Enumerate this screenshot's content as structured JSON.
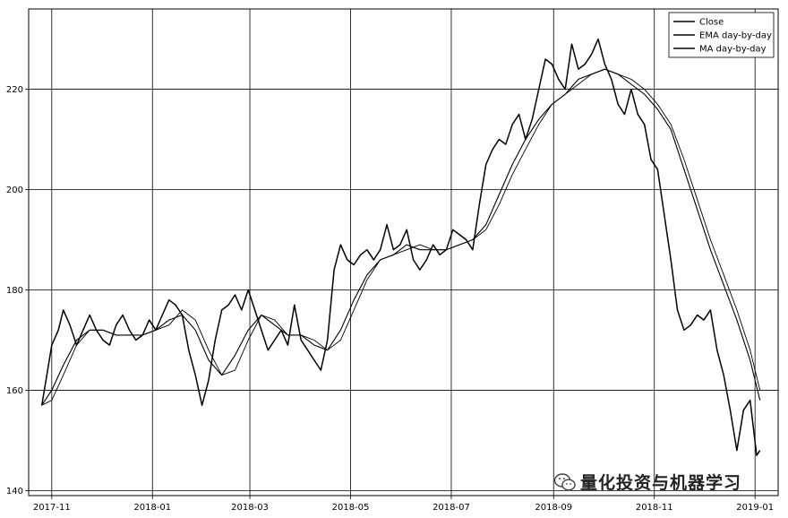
{
  "chart_data": {
    "type": "line",
    "x_tick_labels": [
      "2017-11",
      "2018-01",
      "2018-03",
      "2018-05",
      "2018-07",
      "2018-09",
      "2018-11",
      "2019-01"
    ],
    "y_tick_labels": [
      "140",
      "160",
      "180",
      "200",
      "220"
    ],
    "xlim": [
      "2017-10-18",
      "2019-01-15"
    ],
    "ylim": [
      139,
      236
    ],
    "grid": true,
    "legend_position": "top-right",
    "series": [
      {
        "name": "Close",
        "color": "#000000",
        "x": [
          "2017-10-26",
          "2017-10-29",
          "2017-11-01",
          "2017-11-05",
          "2017-11-08",
          "2017-11-12",
          "2017-11-16",
          "2017-11-20",
          "2017-11-24",
          "2017-11-28",
          "2017-12-02",
          "2017-12-06",
          "2017-12-10",
          "2017-12-14",
          "2017-12-18",
          "2017-12-22",
          "2017-12-26",
          "2017-12-30",
          "2018-01-03",
          "2018-01-07",
          "2018-01-11",
          "2018-01-15",
          "2018-01-19",
          "2018-01-23",
          "2018-01-27",
          "2018-01-31",
          "2018-02-04",
          "2018-02-08",
          "2018-02-12",
          "2018-02-16",
          "2018-02-20",
          "2018-02-24",
          "2018-02-28",
          "2018-03-04",
          "2018-03-08",
          "2018-03-12",
          "2018-03-16",
          "2018-03-20",
          "2018-03-24",
          "2018-03-28",
          "2018-04-01",
          "2018-04-05",
          "2018-04-09",
          "2018-04-13",
          "2018-04-17",
          "2018-04-21",
          "2018-04-25",
          "2018-04-29",
          "2018-05-03",
          "2018-05-07",
          "2018-05-11",
          "2018-05-15",
          "2018-05-19",
          "2018-05-23",
          "2018-05-27",
          "2018-05-31",
          "2018-06-04",
          "2018-06-08",
          "2018-06-12",
          "2018-06-16",
          "2018-06-20",
          "2018-06-24",
          "2018-06-28",
          "2018-07-02",
          "2018-07-06",
          "2018-07-10",
          "2018-07-14",
          "2018-07-18",
          "2018-07-22",
          "2018-07-26",
          "2018-07-30",
          "2018-08-03",
          "2018-08-07",
          "2018-08-11",
          "2018-08-15",
          "2018-08-19",
          "2018-08-23",
          "2018-08-27",
          "2018-08-31",
          "2018-09-04",
          "2018-09-08",
          "2018-09-12",
          "2018-09-16",
          "2018-09-20",
          "2018-09-24",
          "2018-09-28",
          "2018-10-02",
          "2018-10-06",
          "2018-10-10",
          "2018-10-14",
          "2018-10-18",
          "2018-10-22",
          "2018-10-26",
          "2018-10-30",
          "2018-11-03",
          "2018-11-07",
          "2018-11-11",
          "2018-11-15",
          "2018-11-19",
          "2018-11-23",
          "2018-11-27",
          "2018-12-01",
          "2018-12-05",
          "2018-12-09",
          "2018-12-13",
          "2018-12-17",
          "2018-12-21",
          "2018-12-25",
          "2018-12-29",
          "2019-01-02",
          "2019-01-04"
        ],
        "y": [
          157,
          163,
          169,
          172,
          176,
          173,
          169,
          172,
          175,
          172,
          170,
          169,
          173,
          175,
          172,
          170,
          171,
          174,
          172,
          175,
          178,
          177,
          175,
          168,
          163,
          157,
          162,
          170,
          176,
          177,
          179,
          176,
          180,
          176,
          172,
          168,
          170,
          172,
          169,
          177,
          170,
          168,
          166,
          164,
          170,
          184,
          189,
          186,
          185,
          187,
          188,
          186,
          188,
          193,
          188,
          189,
          192,
          186,
          184,
          186,
          189,
          187,
          188,
          192,
          191,
          190,
          188,
          197,
          205,
          208,
          210,
          209,
          213,
          215,
          210,
          214,
          220,
          226,
          225,
          222,
          220,
          229,
          224,
          225,
          227,
          230,
          225,
          222,
          217,
          215,
          220,
          215,
          213,
          206,
          204,
          195,
          186,
          176,
          172,
          173,
          175,
          174,
          176,
          168,
          163,
          156,
          148,
          156,
          158,
          147,
          148
        ],
        "values": [
          157,
          163,
          169,
          172,
          176,
          173,
          169,
          172,
          175,
          172,
          170,
          169,
          173,
          175,
          172,
          170,
          171,
          174,
          172,
          175,
          178,
          177,
          175,
          168,
          163,
          157,
          162,
          170,
          176,
          177,
          179,
          176,
          180,
          176,
          172,
          168,
          170,
          172,
          169,
          177,
          170,
          168,
          166,
          164,
          170,
          184,
          189,
          186,
          185,
          187,
          188,
          186,
          188,
          193,
          188,
          189,
          192,
          186,
          184,
          186,
          189,
          187,
          188,
          192,
          191,
          190,
          188,
          197,
          205,
          208,
          210,
          209,
          213,
          215,
          210,
          214,
          220,
          226,
          225,
          222,
          220,
          229,
          224,
          225,
          227,
          230,
          225,
          222,
          217,
          215,
          220,
          215,
          213,
          206,
          204,
          195,
          186,
          176,
          172,
          173,
          175,
          174,
          176,
          168,
          163,
          156,
          148,
          156,
          158,
          147,
          148
        ]
      },
      {
        "name": "EMA day-by-day",
        "color": "#000000",
        "x": [
          "2017-10-26",
          "2017-11-01",
          "2017-11-08",
          "2017-11-16",
          "2017-11-24",
          "2017-12-02",
          "2017-12-10",
          "2017-12-18",
          "2017-12-26",
          "2018-01-03",
          "2018-01-11",
          "2018-01-19",
          "2018-01-27",
          "2018-02-04",
          "2018-02-12",
          "2018-02-20",
          "2018-02-28",
          "2018-03-08",
          "2018-03-16",
          "2018-03-24",
          "2018-04-01",
          "2018-04-09",
          "2018-04-17",
          "2018-04-25",
          "2018-05-03",
          "2018-05-11",
          "2018-05-19",
          "2018-05-27",
          "2018-06-04",
          "2018-06-12",
          "2018-06-20",
          "2018-06-28",
          "2018-07-06",
          "2018-07-14",
          "2018-07-22",
          "2018-07-30",
          "2018-08-07",
          "2018-08-15",
          "2018-08-23",
          "2018-08-31",
          "2018-09-08",
          "2018-09-16",
          "2018-09-24",
          "2018-10-02",
          "2018-10-10",
          "2018-10-18",
          "2018-10-26",
          "2018-11-03",
          "2018-11-11",
          "2018-11-19",
          "2018-11-27",
          "2018-12-05",
          "2018-12-13",
          "2018-12-21",
          "2018-12-29",
          "2019-01-04"
        ],
        "y": [
          157,
          160,
          165,
          170,
          172,
          172,
          171,
          171,
          171,
          172,
          174,
          175,
          172,
          166,
          163,
          167,
          172,
          175,
          173,
          171,
          171,
          169,
          168,
          172,
          178,
          183,
          186,
          187,
          189,
          188,
          188,
          188,
          189,
          190,
          193,
          199,
          205,
          210,
          214,
          217,
          219,
          222,
          223,
          224,
          223,
          221,
          219,
          216,
          212,
          204,
          196,
          188,
          181,
          174,
          166,
          158
        ],
        "values": [
          157,
          160,
          165,
          170,
          172,
          172,
          171,
          171,
          171,
          172,
          174,
          175,
          172,
          166,
          163,
          167,
          172,
          175,
          173,
          171,
          171,
          169,
          168,
          172,
          178,
          183,
          186,
          187,
          189,
          188,
          188,
          188,
          189,
          190,
          193,
          199,
          205,
          210,
          214,
          217,
          219,
          222,
          223,
          224,
          223,
          221,
          219,
          216,
          212,
          204,
          196,
          188,
          181,
          174,
          166,
          158
        ]
      },
      {
        "name": "MA day-by-day",
        "color": "#000000",
        "x": [
          "2017-10-26",
          "2017-11-01",
          "2017-11-08",
          "2017-11-16",
          "2017-11-24",
          "2017-12-02",
          "2017-12-10",
          "2017-12-18",
          "2017-12-26",
          "2018-01-03",
          "2018-01-11",
          "2018-01-19",
          "2018-01-27",
          "2018-02-04",
          "2018-02-12",
          "2018-02-20",
          "2018-02-28",
          "2018-03-08",
          "2018-03-16",
          "2018-03-24",
          "2018-04-01",
          "2018-04-09",
          "2018-04-17",
          "2018-04-25",
          "2018-05-03",
          "2018-05-11",
          "2018-05-19",
          "2018-05-27",
          "2018-06-04",
          "2018-06-12",
          "2018-06-20",
          "2018-06-28",
          "2018-07-06",
          "2018-07-14",
          "2018-07-22",
          "2018-07-30",
          "2018-08-07",
          "2018-08-15",
          "2018-08-23",
          "2018-08-31",
          "2018-09-08",
          "2018-09-16",
          "2018-09-24",
          "2018-10-02",
          "2018-10-10",
          "2018-10-18",
          "2018-10-26",
          "2018-11-03",
          "2018-11-11",
          "2018-11-19",
          "2018-11-27",
          "2018-12-05",
          "2018-12-13",
          "2018-12-21",
          "2018-12-29",
          "2019-01-04"
        ],
        "y": [
          157,
          158,
          163,
          169,
          172,
          172,
          171,
          171,
          171,
          172,
          173,
          176,
          174,
          168,
          163,
          164,
          170,
          175,
          174,
          171,
          171,
          170,
          168,
          170,
          176,
          182,
          186,
          187,
          188,
          189,
          188,
          188,
          189,
          190,
          192,
          197,
          203,
          208,
          213,
          217,
          219,
          221,
          223,
          224,
          223,
          222,
          220,
          217,
          213,
          206,
          198,
          190,
          183,
          176,
          168,
          160
        ],
        "values": [
          157,
          158,
          163,
          169,
          172,
          172,
          171,
          171,
          171,
          172,
          173,
          176,
          174,
          168,
          163,
          164,
          170,
          175,
          174,
          171,
          171,
          170,
          168,
          170,
          176,
          182,
          186,
          187,
          188,
          189,
          188,
          188,
          189,
          190,
          192,
          197,
          203,
          208,
          213,
          217,
          219,
          221,
          223,
          224,
          223,
          222,
          220,
          217,
          213,
          206,
          198,
          190,
          183,
          176,
          168,
          160
        ]
      }
    ]
  },
  "watermark": {
    "text": "量化投资与机器学习",
    "icon": "wechat-icon"
  }
}
